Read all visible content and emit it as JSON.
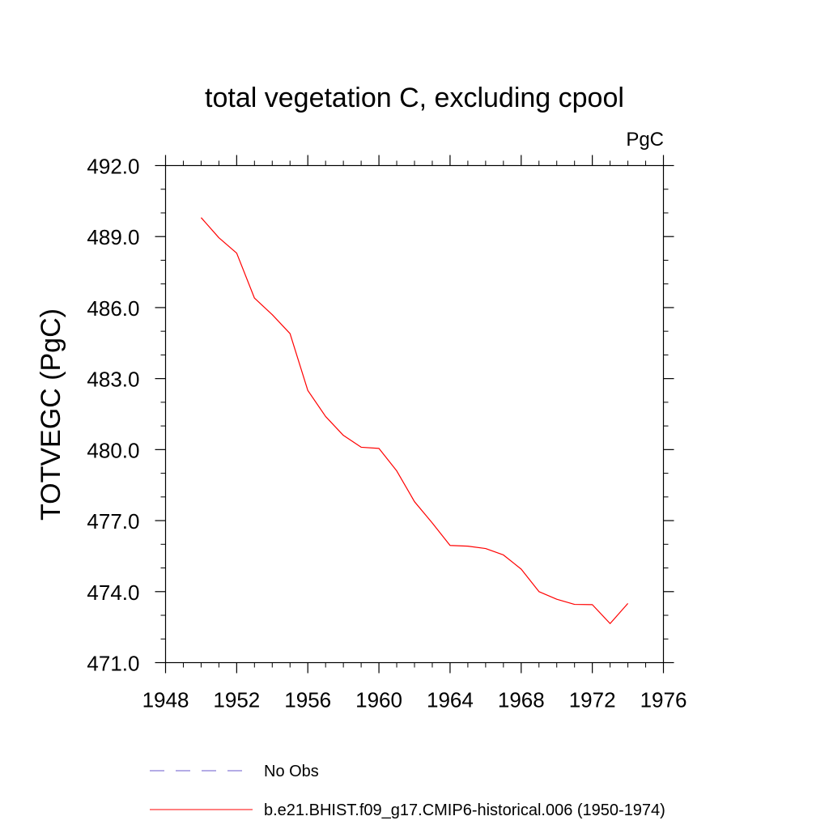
{
  "chart_data": {
    "type": "line",
    "title": "total vegetation C, excluding cpool",
    "units_label": "PgC",
    "ylabel": "TOTVEGC  (PgC)",
    "xlabel": "",
    "xlim": [
      1948,
      1976
    ],
    "ylim": [
      471.0,
      492.0
    ],
    "x_ticks": [
      1948,
      1952,
      1956,
      1960,
      1964,
      1968,
      1972,
      1976
    ],
    "x_tick_labels": [
      "1948",
      "1952",
      "1956",
      "1960",
      "1964",
      "1968",
      "1972",
      "1976"
    ],
    "y_ticks": [
      471,
      474,
      477,
      480,
      483,
      486,
      489,
      492
    ],
    "y_tick_labels": [
      "471.0",
      "474.0",
      "477.0",
      "480.0",
      "483.0",
      "486.0",
      "489.0",
      "492.0"
    ],
    "grid": false,
    "legend_position": "bottom",
    "legend": [
      {
        "label": "No Obs",
        "style": "dashed",
        "color": "#6a5acd"
      },
      {
        "label": "b.e21.BHIST.f09_g17.CMIP6-historical.006 (1950-1974)",
        "style": "solid",
        "color": "#ff0000"
      }
    ],
    "series": [
      {
        "color": "#ff0000",
        "x": [
          1950,
          1951,
          1952,
          1953,
          1954,
          1955,
          1956,
          1957,
          1958,
          1959,
          1960,
          1961,
          1962,
          1963,
          1964,
          1965,
          1966,
          1967,
          1968,
          1969,
          1970,
          1971,
          1972,
          1973,
          1974
        ],
        "y": [
          489.8,
          488.95,
          488.3,
          486.4,
          485.7,
          484.9,
          482.5,
          481.4,
          480.6,
          480.1,
          480.05,
          479.1,
          477.8,
          476.9,
          475.95,
          475.92,
          475.82,
          475.55,
          474.95,
          474.0,
          473.68,
          473.46,
          473.45,
          472.65,
          473.5
        ]
      }
    ]
  }
}
